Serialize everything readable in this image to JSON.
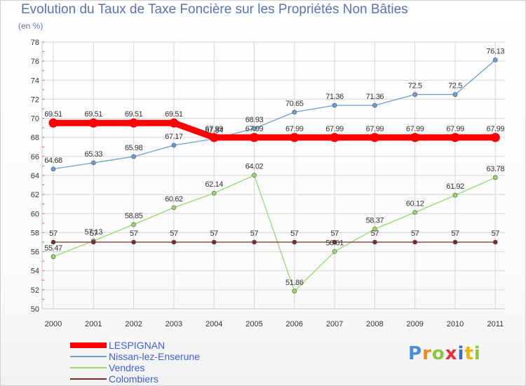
{
  "chart_data": {
    "type": "line",
    "title": "Evolution du Taux de Taxe Foncière sur les Propriétés Non Bâties",
    "unit_label": "(en %)",
    "xlabel": "",
    "ylabel": "(en %)",
    "ylim": [
      50,
      78
    ],
    "yticks": [
      50,
      52,
      54,
      56,
      58,
      60,
      62,
      64,
      66,
      68,
      70,
      72,
      74,
      76,
      78
    ],
    "categories": [
      "2000",
      "2001",
      "2002",
      "2003",
      "2004",
      "2005",
      "2006",
      "2007",
      "2008",
      "2009",
      "2010",
      "2011"
    ],
    "series": [
      {
        "name": "LESPIGNAN",
        "color": "#ff0000",
        "values": [
          69.51,
          69.51,
          69.51,
          69.51,
          67.99,
          67.99,
          67.99,
          67.99,
          67.99,
          67.99,
          67.99,
          67.99
        ],
        "labels": [
          "69.51",
          "69.51",
          "69.51",
          "69.51",
          "67.99",
          "67.99",
          "67.99",
          "67.99",
          "67.99",
          "67.99",
          "67.99",
          "67.99"
        ]
      },
      {
        "name": "Nissan-lez-Enserune",
        "color": "#6b9fd6",
        "values": [
          64.68,
          65.33,
          65.98,
          67.17,
          67.84,
          68.93,
          70.65,
          71.36,
          71.36,
          72.5,
          72.5,
          76.13
        ],
        "labels": [
          "64.68",
          "65.33",
          "65.98",
          "67.17",
          "67.84",
          "68.93",
          "70.65",
          "71.36",
          "71.36",
          "72.5",
          "72.5",
          "76.13"
        ]
      },
      {
        "name": "Vendres",
        "color": "#99d96a",
        "values": [
          55.47,
          57.13,
          58.85,
          60.62,
          62.14,
          64.02,
          51.86,
          56.01,
          58.37,
          60.12,
          61.92,
          63.78
        ],
        "labels": [
          "55.47",
          "57.13",
          "58.85",
          "60.62",
          "62.14",
          "64.02",
          "51.86",
          "56.01",
          "58.37",
          "60.12",
          "61.92",
          "63.78"
        ]
      },
      {
        "name": "Colombiers",
        "color": "#7a2a2a",
        "values": [
          57,
          57,
          57,
          57,
          57,
          57,
          57,
          57,
          57,
          57,
          57,
          57
        ],
        "labels": [
          "57",
          "57",
          "57",
          "57",
          "57",
          "57",
          "57",
          "57",
          "57",
          "57",
          "57",
          "57"
        ]
      }
    ]
  },
  "logo": {
    "text": "Proxiti",
    "letters": [
      "P",
      "r",
      "o",
      "x",
      "i",
      "t",
      "i"
    ],
    "colors": [
      "#4a8fd6",
      "#f08a1e",
      "#8cc63f",
      "#e8303a",
      "#3a6fc4",
      "#f0b400",
      "#8cc63f"
    ]
  }
}
